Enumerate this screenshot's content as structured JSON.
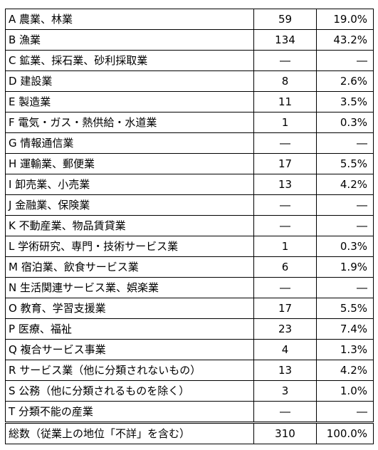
{
  "table": {
    "rows": [
      {
        "name": "A 農業、林業",
        "count": "59",
        "pct": "19.0%"
      },
      {
        "name": "B 漁業",
        "count": "134",
        "pct": "43.2%"
      },
      {
        "name": "C 鉱業、採石業、砂利採取業",
        "count": "―",
        "pct": "―"
      },
      {
        "name": "D 建設業",
        "count": "8",
        "pct": "2.6%"
      },
      {
        "name": "E 製造業",
        "count": "11",
        "pct": "3.5%"
      },
      {
        "name": "F 電気・ガス・熱供給・水道業",
        "count": "1",
        "pct": "0.3%"
      },
      {
        "name": "G 情報通信業",
        "count": "―",
        "pct": "―"
      },
      {
        "name": "H 運輸業、郵便業",
        "count": "17",
        "pct": "5.5%"
      },
      {
        "name": "I 卸売業、小売業",
        "count": "13",
        "pct": "4.2%"
      },
      {
        "name": "J 金融業、保険業",
        "count": "―",
        "pct": "―"
      },
      {
        "name": "K 不動産業、物品賃貸業",
        "count": "―",
        "pct": "―"
      },
      {
        "name": "L 学術研究、専門・技術サービス業",
        "count": "1",
        "pct": "0.3%"
      },
      {
        "name": "M 宿泊業、飲食サービス業",
        "count": "6",
        "pct": "1.9%"
      },
      {
        "name": "N 生活関連サービス業、娯楽業",
        "count": "―",
        "pct": "―"
      },
      {
        "name": "O 教育、学習支援業",
        "count": "17",
        "pct": "5.5%"
      },
      {
        "name": "P 医療、福祉",
        "count": "23",
        "pct": "7.4%"
      },
      {
        "name": "Q 複合サービス事業",
        "count": "4",
        "pct": "1.3%"
      },
      {
        "name": "R サービス業（他に分類されないもの）",
        "count": "13",
        "pct": "4.2%"
      },
      {
        "name": "S 公務（他に分類されるものを除く）",
        "count": "3",
        "pct": "1.0%"
      },
      {
        "name": "T 分類不能の産業",
        "count": "―",
        "pct": "―"
      }
    ],
    "total": {
      "name": "総数（従業上の地位「不詳」を含む）",
      "count": "310",
      "pct": "100.0%"
    }
  }
}
